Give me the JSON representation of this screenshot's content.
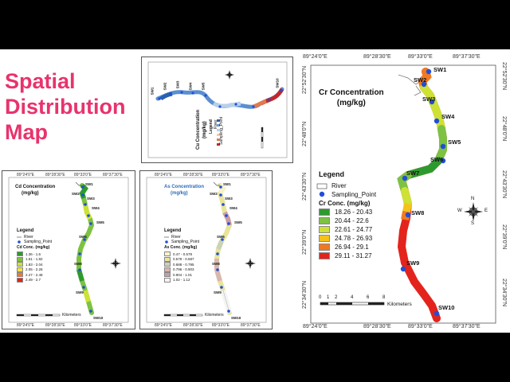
{
  "title_lines": [
    "Spatial",
    "Distribution",
    "Map"
  ],
  "colors": {
    "title": "#e8336d",
    "band": "#000000",
    "sampling_point": "#1f4fd8",
    "river_outline": "#555555"
  },
  "cr_map": {
    "title_line1": "Cr Concentration",
    "title_line2": "(mg/kg)",
    "top_ticks": [
      "89°24'0\"E",
      "89°28'30\"E",
      "89°33'0\"E",
      "89°37'30\"E"
    ],
    "bottom_ticks": [
      "89°24'0\"E",
      "89°28'30\"E",
      "89°33'0\"E",
      "89°37'30\"E"
    ],
    "left_ticks": [
      "22°52'30\"N",
      "22°48'0\"N",
      "22°43'30\"N",
      "22°39'0\"N",
      "22°34'30\"N"
    ],
    "right_ticks": [
      "22°52'30\"N",
      "22°48'0\"N",
      "22°43'30\"N",
      "22°39'0\"N",
      "22°34'30\"N"
    ],
    "legend": {
      "heading": "Legend",
      "river": "River",
      "sampling_point": "Sampling_Point",
      "conc_heading": "Cr Conc. (mg/kg)",
      "classes": [
        {
          "label": "18.26 - 20.43",
          "color": "#2e9a2e"
        },
        {
          "label": "20.44 - 22.6",
          "color": "#7dc242"
        },
        {
          "label": "22.61 - 24.77",
          "color": "#cde234"
        },
        {
          "label": "24.78 - 26.93",
          "color": "#f5c21b"
        },
        {
          "label": "26.94 - 29.1",
          "color": "#f07a22"
        },
        {
          "label": "29.11 - 31.27",
          "color": "#e3241d"
        }
      ]
    },
    "scale": {
      "ticks": [
        "0",
        "1",
        "2",
        "4",
        "6",
        "8"
      ],
      "unit": "Kilometers"
    },
    "north": {
      "n": "N",
      "e": "E",
      "s": "S",
      "w": "W"
    },
    "stations": [
      "SW1",
      "SW2",
      "SW3",
      "SW4",
      "SW5",
      "SW6",
      "SW7",
      "SW8",
      "SW9",
      "SW10"
    ]
  },
  "cd_map": {
    "title_line1": "Cd Concentration",
    "title_line2": "(mg/kg)",
    "top_ticks": [
      "89°24'0\"E",
      "89°28'30\"E",
      "89°33'0\"E",
      "89°37'30\"E"
    ],
    "bottom_ticks": [
      "89°24'0\"E",
      "89°28'30\"E",
      "89°33'0\"E",
      "89°37'30\"E"
    ],
    "legend": {
      "heading": "Legend",
      "river": "River",
      "sampling_point": "Sampling_Point",
      "conc_heading": "Cd Conc. (mg/kg)",
      "classes": [
        {
          "label": "1.36 - 1.6",
          "color": "#2e9a2e"
        },
        {
          "label": "1.61 - 1.82",
          "color": "#7dc242"
        },
        {
          "label": "1.83 - 2.04",
          "color": "#cde234"
        },
        {
          "label": "2.05 - 2.26",
          "color": "#f5e04a"
        },
        {
          "label": "2.27 - 2.48",
          "color": "#f07a22"
        },
        {
          "label": "2.49 - 2.7",
          "color": "#e3241d"
        }
      ]
    },
    "scale_unit": "Kilometers",
    "stations": [
      "SW1",
      "SW2",
      "SW3",
      "SW4",
      "SW5",
      "SW6",
      "SW7",
      "SW8",
      "SW9",
      "SW10"
    ]
  },
  "as_map": {
    "title_line1": "As Concentration",
    "title_line2": "(mg/kg)",
    "top_ticks": [
      "89°24'0\"E",
      "89°28'30\"E",
      "89°33'0\"E",
      "89°37'30\"E"
    ],
    "bottom_ticks": [
      "89°24'0\"E",
      "89°28'30\"E",
      "89°33'0\"E",
      "89°37'30\"E"
    ],
    "legend": {
      "heading": "Legend",
      "river": "River",
      "sampling_point": "Sampling_Point",
      "conc_heading": "As Conc. (mg/kg)",
      "classes": [
        {
          "label": "0.47 - 0.578",
          "color": "#f7f3c8"
        },
        {
          "label": "0.579 - 0.687",
          "color": "#e8e49a"
        },
        {
          "label": "0.688 - 0.795",
          "color": "#c8d3b8"
        },
        {
          "label": "0.796 - 0.903",
          "color": "#d9b8b0"
        },
        {
          "label": "0.904 - 1.01",
          "color": "#c99ca6"
        },
        {
          "label": "1.02 - 1.12",
          "color": "#f4f4f4"
        }
      ]
    },
    "scale_unit": "Kilometers",
    "stations": [
      "SW1",
      "SW2",
      "SW3",
      "SW4",
      "SW5",
      "SW6",
      "SW7",
      "SW8",
      "SW9",
      "SW10"
    ]
  },
  "top_map": {
    "title_line1": "Cu Concentration",
    "title_line2": "(mg/kg)",
    "legend": {
      "heading": "Legend",
      "river": "River",
      "sampling_point": "Sampling_Point",
      "classes": [
        {
          "color": "#2a5fb0"
        },
        {
          "color": "#6a9bd0"
        },
        {
          "color": "#b8d0e8"
        },
        {
          "color": "#f4c9a8"
        },
        {
          "color": "#e07a50"
        },
        {
          "color": "#c0282a"
        }
      ]
    },
    "stations": [
      "SW1",
      "SW2",
      "SW3",
      "SW4",
      "SW5",
      "SW6",
      "SW7",
      "SW8",
      "SW9",
      "SW10"
    ]
  }
}
